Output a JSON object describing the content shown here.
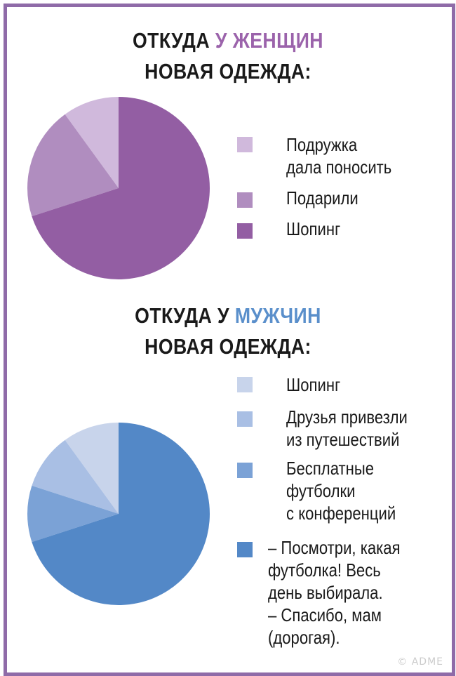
{
  "women": {
    "title_prefix": "ОТКУДА ",
    "title_accent": "У ЖЕНЩИН",
    "title_line2": "НОВАЯ ОДЕЖДА:"
  },
  "men": {
    "title_prefix": "ОТКУДА У ",
    "title_accent": "МУЖЧИН",
    "title_line2": "НОВАЯ ОДЕЖДА:"
  },
  "watermark": "© ADME",
  "chart_data": [
    {
      "type": "pie",
      "title": "ОТКУДА У ЖЕНЩИН НОВАЯ ОДЕЖДА:",
      "categories": [
        "Подружка дала поносить",
        "Подарили",
        "Шопинг"
      ],
      "values": [
        10,
        20,
        70
      ],
      "colors": [
        "#d0b9dc",
        "#b08dbf",
        "#935ea3"
      ],
      "legend_labels": [
        "Подружка\nдала поносить",
        "Подарили",
        "Шопинг"
      ],
      "legend_placement": "right"
    },
    {
      "type": "pie",
      "title": "ОТКУДА У МУЖЧИН НОВАЯ ОДЕЖДА:",
      "categories": [
        "Шопинг",
        "Друзья привезли из путешествий",
        "Бесплатные футболки с конференций",
        "Посмотри, какая футболка! Весь день выбирала. Спасибо, мам (дорогая)."
      ],
      "values": [
        10,
        10,
        10,
        70
      ],
      "colors": [
        "#c8d4eb",
        "#a9bfe4",
        "#7ba2d6",
        "#5388c7"
      ],
      "legend_labels": [
        "Шопинг",
        "Друзья привезли\nиз путешествий",
        "Бесплатные\nфутболки\nс конференций",
        "– Посмотри, какая\nфутболка! Весь\nдень выбирала.\n– Спасибо, мам\n(дорогая)."
      ],
      "legend_placement": "right"
    }
  ]
}
